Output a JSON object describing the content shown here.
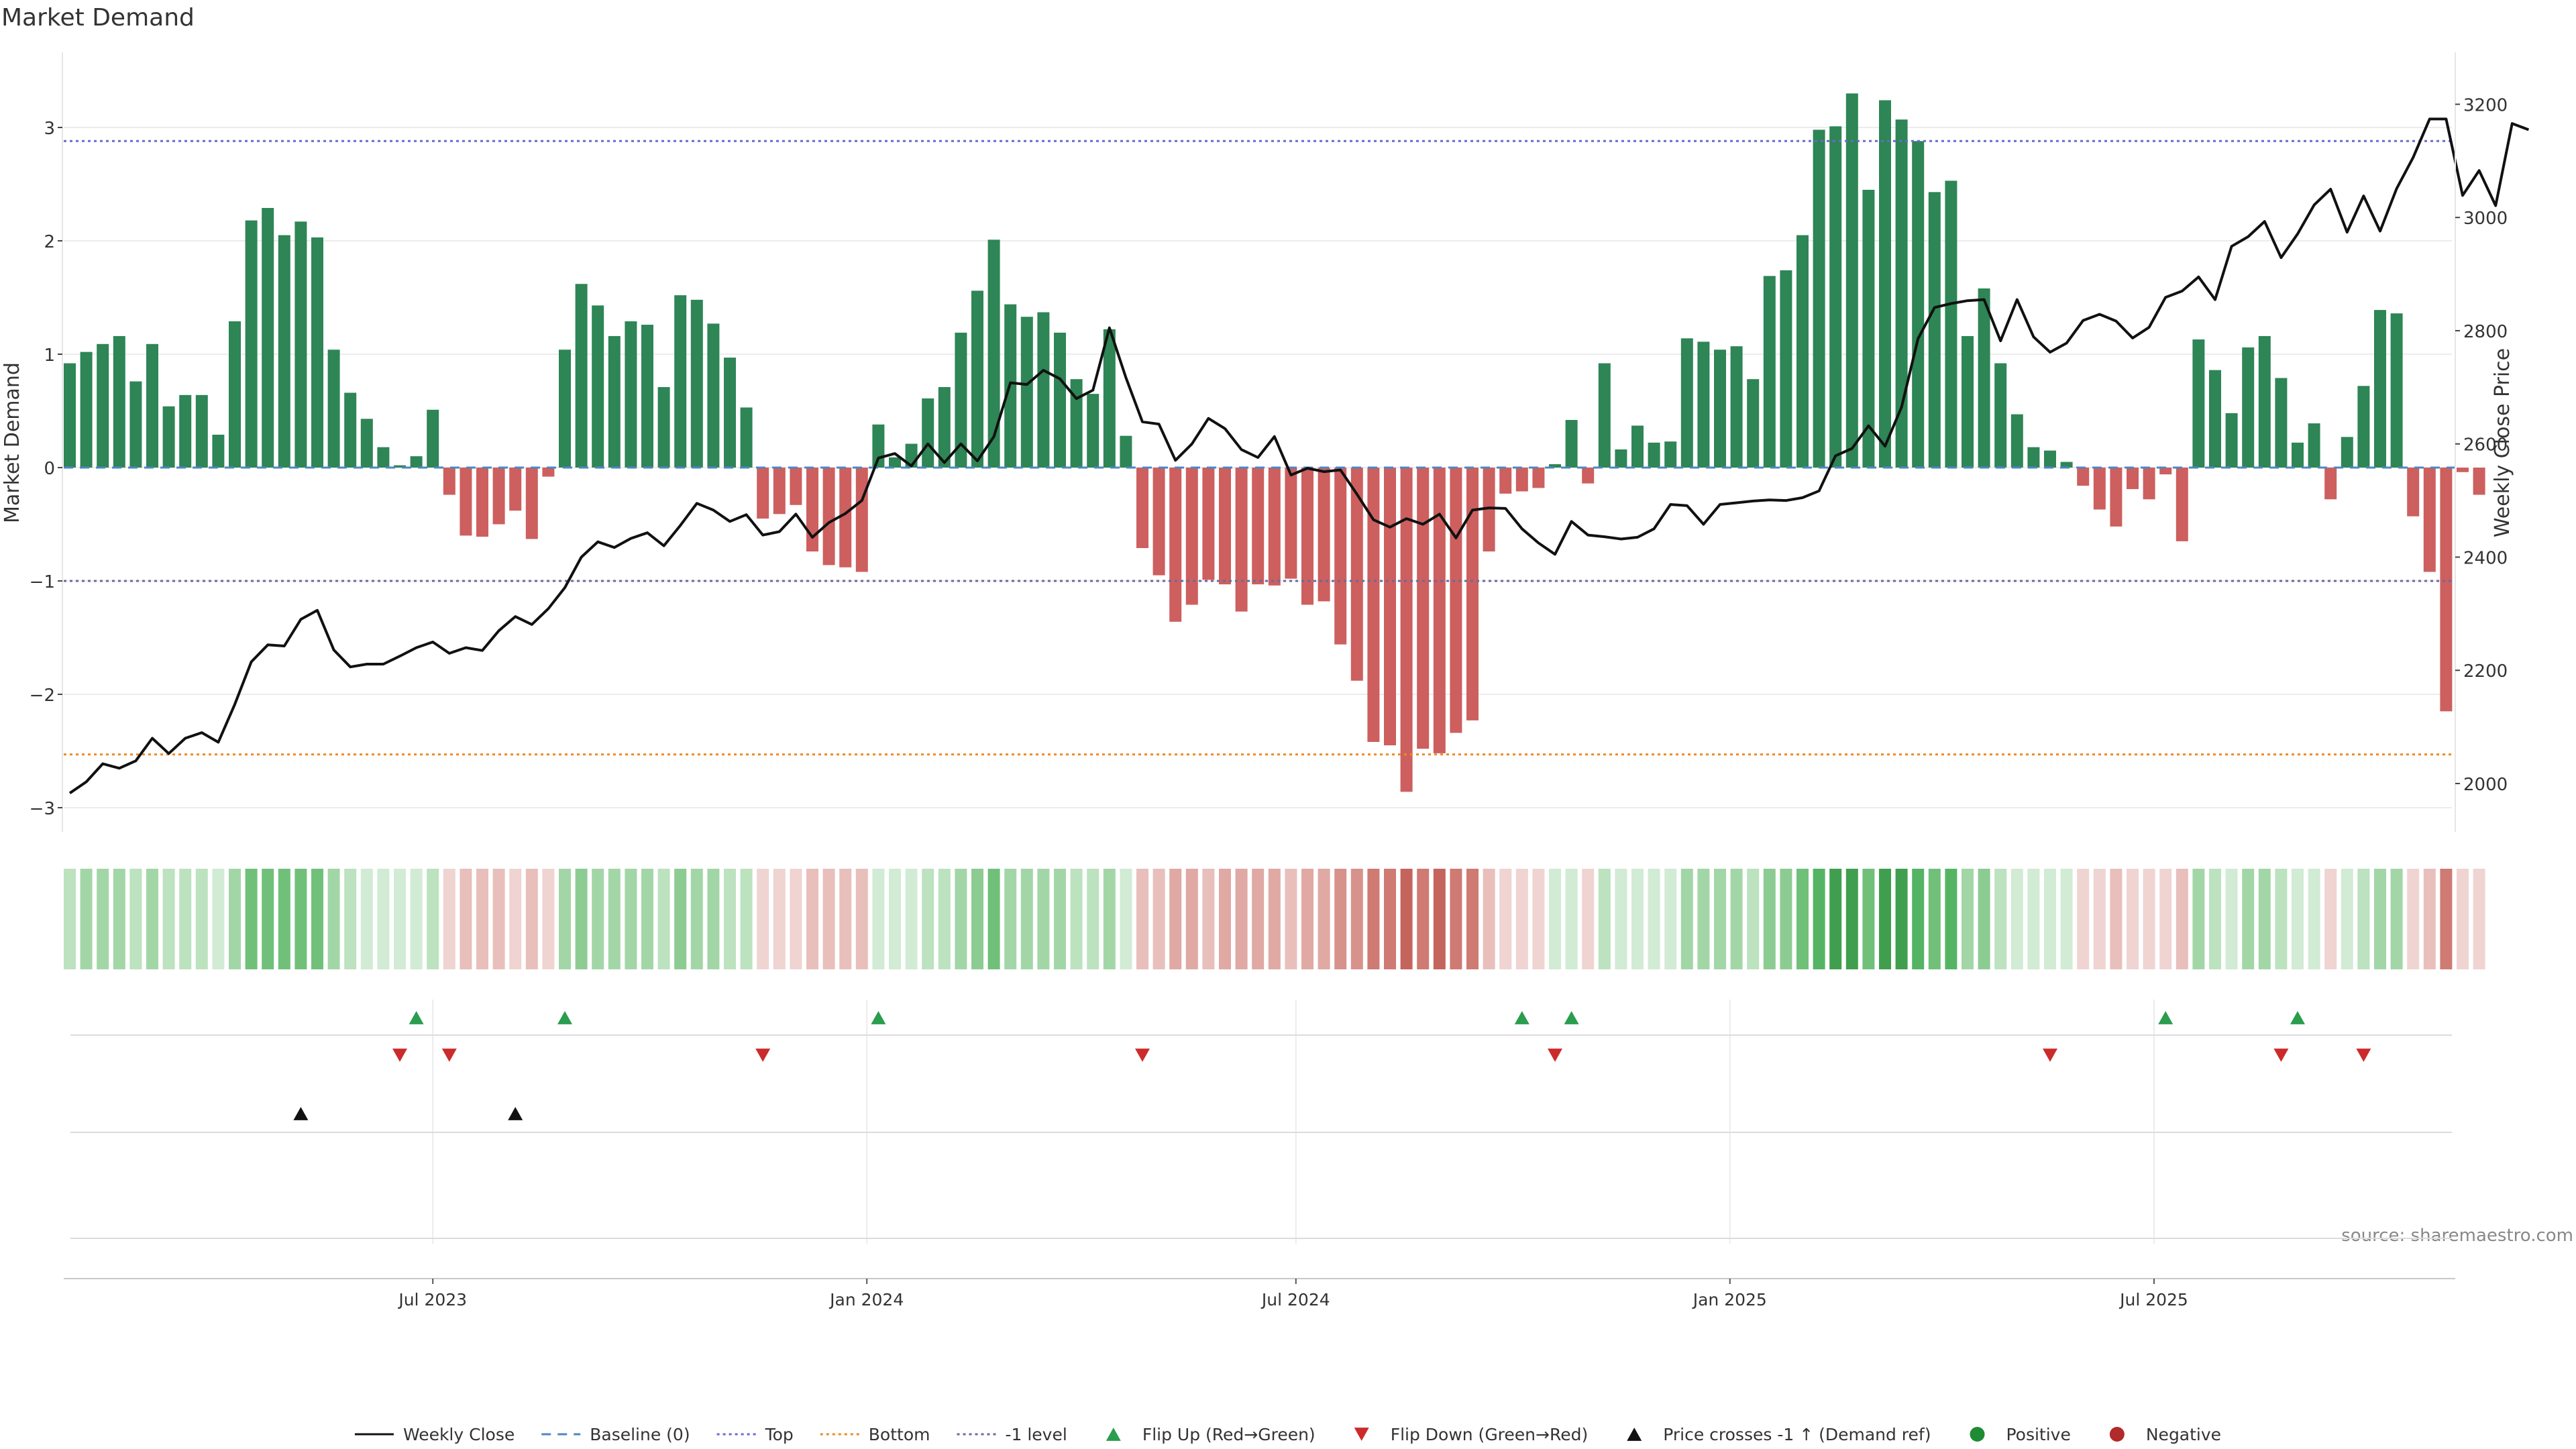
{
  "chart_data": {
    "type": "bar",
    "title": "Market Demand",
    "ylabel": "Market Demand",
    "y2label": "Weekly Close Price",
    "ylim": [
      -3.2,
      3.6
    ],
    "y2lim": [
      1960,
      3260
    ],
    "yticks": [
      -3,
      -2,
      -1,
      0,
      1,
      2,
      3
    ],
    "yticklabels": [
      "−3",
      "−2",
      "−1",
      "0",
      "1",
      "2",
      "3"
    ],
    "y2ticks": [
      2000,
      2200,
      2400,
      2600,
      2800,
      3000,
      3200
    ],
    "x_range": [
      0,
      144
    ],
    "xticks": [
      {
        "label": "Jul 2023",
        "pos": 22
      },
      {
        "label": "Jan 2024",
        "pos": 48.3
      },
      {
        "label": "Jul 2024",
        "pos": 74.3
      },
      {
        "label": "Jan 2025",
        "pos": 100.6
      },
      {
        "label": "Jul 2025",
        "pos": 126.3
      }
    ],
    "levels": {
      "top": 2.88,
      "bottom": -2.53,
      "minus_one": -1.0,
      "baseline": 0
    },
    "demand": [
      0.92,
      1.02,
      1.09,
      1.16,
      0.76,
      1.09,
      0.54,
      0.64,
      0.64,
      0.29,
      1.29,
      2.18,
      2.29,
      2.05,
      2.17,
      2.03,
      1.04,
      0.66,
      0.43,
      0.18,
      0.02,
      0.1,
      0.51,
      -0.24,
      -0.6,
      -0.61,
      -0.5,
      -0.38,
      -0.63,
      -0.08,
      1.04,
      1.62,
      1.43,
      1.16,
      1.29,
      1.26,
      0.71,
      1.52,
      1.48,
      1.27,
      0.97,
      0.53,
      -0.45,
      -0.41,
      -0.33,
      -0.74,
      -0.86,
      -0.88,
      -0.92,
      0.38,
      0.09,
      0.21,
      0.61,
      0.71,
      1.19,
      1.56,
      2.01,
      1.44,
      1.33,
      1.37,
      1.19,
      0.78,
      0.65,
      1.22,
      0.28,
      -0.71,
      -0.95,
      -1.36,
      -1.21,
      -0.99,
      -1.03,
      -1.27,
      -1.03,
      -1.04,
      -0.98,
      -1.21,
      -1.18,
      -1.56,
      -1.88,
      -2.42,
      -2.45,
      -2.86,
      -2.48,
      -2.52,
      -2.34,
      -2.23,
      -0.74,
      -0.23,
      -0.21,
      -0.18,
      0.03,
      0.42,
      -0.14,
      0.92,
      0.16,
      0.37,
      0.22,
      0.23,
      1.14,
      1.11,
      1.04,
      1.07,
      0.78,
      1.69,
      1.74,
      2.05,
      2.98,
      3.01,
      3.3,
      2.45,
      3.24,
      3.07,
      2.88,
      2.43,
      2.53,
      1.16,
      1.58,
      0.92,
      0.47,
      0.18,
      0.15,
      0.05,
      -0.16,
      -0.37,
      -0.52,
      -0.19,
      -0.28,
      -0.06,
      -0.65,
      1.13,
      0.86,
      0.48,
      1.06,
      1.16,
      0.79,
      0.22,
      0.39,
      -0.28,
      0.27,
      0.72,
      1.39,
      1.36,
      -0.43,
      -0.92,
      -2.15,
      -0.04,
      -0.24
    ],
    "price": [
      1983,
      2003,
      2035,
      2027,
      2040,
      2080,
      2053,
      2080,
      2090,
      2073,
      2140,
      2215,
      2245,
      2243,
      2290,
      2306,
      2236,
      2206,
      2211,
      2211,
      2225,
      2240,
      2250,
      2230,
      2240,
      2235,
      2270,
      2295,
      2281,
      2309,
      2346,
      2400,
      2427,
      2417,
      2433,
      2443,
      2420,
      2456,
      2495,
      2483,
      2463,
      2475,
      2439,
      2445,
      2476,
      2435,
      2461,
      2477,
      2500,
      2575,
      2583,
      2561,
      2600,
      2567,
      2600,
      2570,
      2613,
      2708,
      2705,
      2730,
      2715,
      2680,
      2695,
      2805,
      2717,
      2639,
      2635,
      2571,
      2600,
      2645,
      2627,
      2590,
      2576,
      2613,
      2545,
      2557,
      2551,
      2554,
      2511,
      2466,
      2453,
      2468,
      2458,
      2476,
      2434,
      2483,
      2487,
      2486,
      2450,
      2425,
      2405,
      2463,
      2439,
      2436,
      2432,
      2435,
      2450,
      2493,
      2491,
      2458,
      2493,
      2496,
      2499,
      2501,
      2500,
      2505,
      2517,
      2579,
      2592,
      2632,
      2596,
      2665,
      2786,
      2841,
      2848,
      2853,
      2855,
      2782,
      2855,
      2789,
      2762,
      2778,
      2818,
      2829,
      2817,
      2787,
      2806,
      2859,
      2870,
      2895,
      2855,
      2949,
      2966,
      2993,
      2929,
      2971,
      3022,
      3050,
      2974,
      3038,
      2976,
      3051,
      3106,
      3174,
      3174,
      3039,
      3083,
      3021,
      3166,
      3155
    ],
    "strip": {
      "positive_colors": [
        "#d2ebd4",
        "#bce2bf",
        "#a3d6a7",
        "#8ccc92",
        "#70c07a",
        "#55b464",
        "#3f9f4e"
      ],
      "negative_colors": [
        "#efd4d2",
        "#e8bfbb",
        "#e0a9a4",
        "#d8928c",
        "#cf7a73",
        "#c4645d"
      ]
    },
    "flip_up_idx": [
      21,
      30,
      49,
      88,
      91,
      127,
      135
    ],
    "flip_down_idx": [
      20,
      23,
      42,
      65,
      90,
      120,
      134,
      139
    ],
    "price_cross_idx": [
      14,
      27
    ],
    "legend": [
      {
        "label": "Weekly Close",
        "kind": "line",
        "color": "#111111",
        "dash": ""
      },
      {
        "label": "Baseline (0)",
        "kind": "line",
        "color": "#4c86c6",
        "dash": "14,10"
      },
      {
        "label": "Top",
        "kind": "line",
        "color": "#6a6ad0",
        "dash": "4,5"
      },
      {
        "label": "Bottom",
        "kind": "line",
        "color": "#f08a24",
        "dash": "4,5"
      },
      {
        "label": "-1 level",
        "kind": "line",
        "color": "#6a6a9a",
        "dash": "4,5"
      },
      {
        "label": "Flip Up (Red→Green)",
        "kind": "up",
        "color": "#2a9d4e"
      },
      {
        "label": "Flip Down (Green→Red)",
        "kind": "down",
        "color": "#cc2b2b"
      },
      {
        "label": "Price crosses -1 ↑ (Demand ref)",
        "kind": "up",
        "color": "#111111"
      },
      {
        "label": "Positive",
        "kind": "dot",
        "color": "#1e8c32"
      },
      {
        "label": "Negative",
        "kind": "dot",
        "color": "#b22a2a"
      }
    ],
    "source": "source: sharemaestro.com",
    "colors": {
      "bar_pos": "#2e8555",
      "bar_neg": "#cd5f5f",
      "price": "#111111"
    }
  }
}
